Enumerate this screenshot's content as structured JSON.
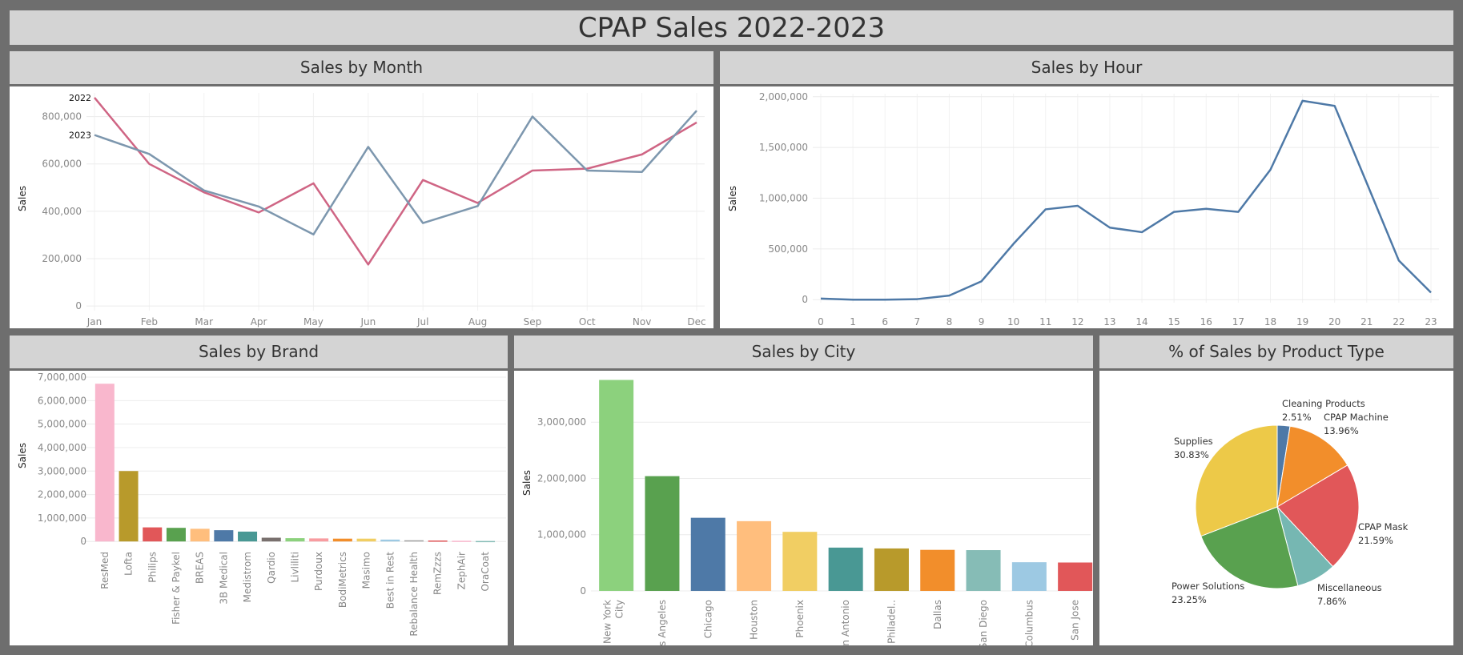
{
  "title": "CPAP Sales 2022-2023",
  "chart_data": [
    {
      "id": "month",
      "type": "line",
      "title": "Sales by Month",
      "ylabel": "Sales",
      "xlabel": "",
      "categories": [
        "Jan",
        "Feb",
        "Mar",
        "Apr",
        "May",
        "Jun",
        "Jul",
        "Aug",
        "Sep",
        "Oct",
        "Nov",
        "Dec"
      ],
      "series": [
        {
          "name": "2022",
          "color": "#cf6584",
          "values": [
            880000,
            600000,
            480000,
            395000,
            518000,
            175000,
            532000,
            435000,
            572000,
            580000,
            640000,
            775000
          ]
        },
        {
          "name": "2023",
          "color": "#7d97ae",
          "values": [
            722000,
            642000,
            488000,
            420000,
            302000,
            672000,
            350000,
            422000,
            800000,
            572000,
            566000,
            825000
          ]
        }
      ],
      "ylim": [
        -20000,
        900000
      ],
      "yticks": [
        0,
        200000,
        400000,
        600000,
        800000
      ],
      "ytick_labels": [
        "0",
        "200,000",
        "400,000",
        "600,000",
        "800,000"
      ],
      "grid": true
    },
    {
      "id": "hour",
      "type": "line",
      "title": "Sales by Hour",
      "ylabel": "Sales",
      "xlabel": "",
      "categories": [
        "0",
        "1",
        "6",
        "7",
        "8",
        "9",
        "10",
        "11",
        "12",
        "13",
        "14",
        "15",
        "16",
        "17",
        "18",
        "19",
        "20",
        "21",
        "22",
        "23"
      ],
      "series": [
        {
          "name": "",
          "color": "#4e79a7",
          "values": [
            10000,
            0,
            0,
            5000,
            40000,
            180000,
            550000,
            890000,
            925000,
            710000,
            665000,
            865000,
            895000,
            865000,
            1280000,
            1960000,
            1910000,
            1150000,
            385000,
            70000
          ]
        }
      ],
      "ylim": [
        -30000,
        2030000
      ],
      "yticks": [
        0,
        500000,
        1000000,
        1500000,
        2000000
      ],
      "ytick_labels": [
        "0",
        "500,000",
        "1,000,000",
        "1,500,000",
        "2,000,000"
      ],
      "grid": true
    },
    {
      "id": "brand",
      "type": "bar",
      "title": "Sales by Brand",
      "ylabel": "Sales",
      "xlabel": "",
      "categories": [
        "ResMed",
        "Lofta",
        "Philips",
        "Fisher & Paykel",
        "BREAS",
        "3B Medical",
        "Medistrom",
        "Qardio",
        "Livliliti",
        "Purdoux",
        "BodiMetrics",
        "Masimo",
        "Best in Rest",
        "Rebalance Health",
        "RemZzzs",
        "ZephAir",
        "OraCoat"
      ],
      "values": [
        6720000,
        3000000,
        600000,
        580000,
        540000,
        480000,
        420000,
        160000,
        140000,
        130000,
        120000,
        120000,
        80000,
        50000,
        40000,
        30000,
        20000
      ],
      "colors": [
        "#f9b7cd",
        "#b89a2b",
        "#e15759",
        "#59a14f",
        "#ffbe7d",
        "#4e79a7",
        "#499894",
        "#79706e",
        "#8cd17d",
        "#f89ca0",
        "#f28e2b",
        "#f1ce63",
        "#9dc9e3",
        "#a0a0a0",
        "#e15759",
        "#f9b7cd",
        "#86bcb6"
      ],
      "ylim": [
        -300000,
        7000000
      ],
      "yticks": [
        0,
        1000000,
        2000000,
        3000000,
        4000000,
        5000000,
        6000000,
        7000000
      ],
      "ytick_labels": [
        "0",
        "1,000,000",
        "2,000,000",
        "3,000,000",
        "4,000,000",
        "5,000,000",
        "6,000,000",
        "7,000,000"
      ],
      "grid": true
    },
    {
      "id": "city",
      "type": "bar",
      "title": "Sales by City",
      "ylabel": "Sales",
      "xlabel": "",
      "categories": [
        "New York City",
        "Los Angeles",
        "Chicago",
        "Houston",
        "Phoenix",
        "San Antonio",
        "Philadel..",
        "Dallas",
        "San Diego",
        "Columbus",
        "San Jose"
      ],
      "values": [
        3750000,
        2040000,
        1300000,
        1240000,
        1050000,
        770000,
        755000,
        730000,
        725000,
        510000,
        505000
      ],
      "colors": [
        "#8cd17d",
        "#59a14f",
        "#4e79a7",
        "#ffbe7d",
        "#f1ce63",
        "#499894",
        "#b89a2b",
        "#f28e2b",
        "#86bcb6",
        "#9dc9e3",
        "#e15759"
      ],
      "ylim": [
        -100000,
        3800000
      ],
      "yticks": [
        0,
        1000000,
        2000000,
        3000000
      ],
      "ytick_labels": [
        "0",
        "1,000,000",
        "2,000,000",
        "3,000,000"
      ],
      "grid": true
    },
    {
      "id": "product",
      "type": "pie",
      "title": "% of Sales by Product Type",
      "slices": [
        {
          "label": "Cleaning Products",
          "pct": "2.51%",
          "value": 2.51,
          "color": "#4e79a7"
        },
        {
          "label": "CPAP Machine",
          "pct": "13.96%",
          "value": 13.96,
          "color": "#f28e2b"
        },
        {
          "label": "CPAP Mask",
          "pct": "21.59%",
          "value": 21.59,
          "color": "#e15759"
        },
        {
          "label": "Miscellaneous",
          "pct": "7.86%",
          "value": 7.86,
          "color": "#76b7b2"
        },
        {
          "label": "Power Solutions",
          "pct": "23.25%",
          "value": 23.25,
          "color": "#59a14f"
        },
        {
          "label": "Supplies",
          "pct": "30.83%",
          "value": 30.83,
          "color": "#edc948"
        }
      ]
    }
  ]
}
